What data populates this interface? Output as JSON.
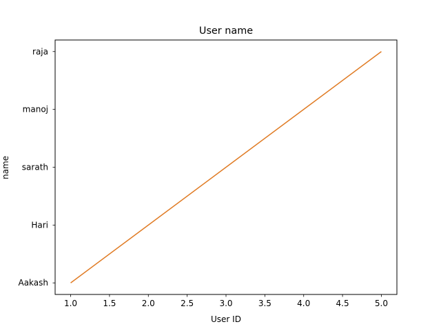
{
  "chart_data": {
    "type": "line",
    "title": "User name",
    "xlabel": "User ID",
    "ylabel": "name",
    "x": [
      1,
      2,
      3,
      4,
      5
    ],
    "categories": [
      "Aakash",
      "Hari",
      "sarath",
      "manoj",
      "raja"
    ],
    "series": [
      {
        "values": [
          "Aakash",
          "Hari",
          "sarath",
          "manoj",
          "raja"
        ],
        "color": "#e07b24"
      }
    ],
    "xticks": [
      "1.0",
      "1.5",
      "2.0",
      "2.5",
      "3.0",
      "3.5",
      "4.0",
      "4.5",
      "5.0"
    ],
    "xlim": [
      0.8,
      5.2
    ],
    "grid": false,
    "legend": false
  }
}
